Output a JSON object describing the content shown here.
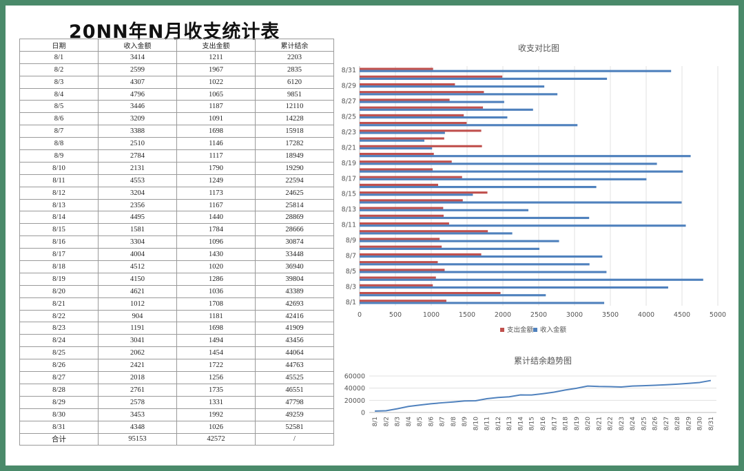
{
  "page_title": "20NN年N月收支统计表",
  "table": {
    "headers": [
      "日期",
      "收入金额",
      "支出金额",
      "累计结余"
    ],
    "rows": [
      [
        "8/1",
        "3414",
        "1211",
        "2203"
      ],
      [
        "8/2",
        "2599",
        "1967",
        "2835"
      ],
      [
        "8/3",
        "4307",
        "1022",
        "6120"
      ],
      [
        "8/4",
        "4796",
        "1065",
        "9851"
      ],
      [
        "8/5",
        "3446",
        "1187",
        "12110"
      ],
      [
        "8/6",
        "3209",
        "1091",
        "14228"
      ],
      [
        "8/7",
        "3388",
        "1698",
        "15918"
      ],
      [
        "8/8",
        "2510",
        "1146",
        "17282"
      ],
      [
        "8/9",
        "2784",
        "1117",
        "18949"
      ],
      [
        "8/10",
        "2131",
        "1790",
        "19290"
      ],
      [
        "8/11",
        "4553",
        "1249",
        "22594"
      ],
      [
        "8/12",
        "3204",
        "1173",
        "24625"
      ],
      [
        "8/13",
        "2356",
        "1167",
        "25814"
      ],
      [
        "8/14",
        "4495",
        "1440",
        "28869"
      ],
      [
        "8/15",
        "1581",
        "1784",
        "28666"
      ],
      [
        "8/16",
        "3304",
        "1096",
        "30874"
      ],
      [
        "8/17",
        "4004",
        "1430",
        "33448"
      ],
      [
        "8/18",
        "4512",
        "1020",
        "36940"
      ],
      [
        "8/19",
        "4150",
        "1286",
        "39804"
      ],
      [
        "8/20",
        "4621",
        "1036",
        "43389"
      ],
      [
        "8/21",
        "1012",
        "1708",
        "42693"
      ],
      [
        "8/22",
        "904",
        "1181",
        "42416"
      ],
      [
        "8/23",
        "1191",
        "1698",
        "41909"
      ],
      [
        "8/24",
        "3041",
        "1494",
        "43456"
      ],
      [
        "8/25",
        "2062",
        "1454",
        "44064"
      ],
      [
        "8/26",
        "2421",
        "1722",
        "44763"
      ],
      [
        "8/27",
        "2018",
        "1256",
        "45525"
      ],
      [
        "8/28",
        "2761",
        "1735",
        "46551"
      ],
      [
        "8/29",
        "2578",
        "1331",
        "47798"
      ],
      [
        "8/30",
        "3453",
        "1992",
        "49259"
      ],
      [
        "8/31",
        "4348",
        "1026",
        "52581"
      ]
    ],
    "total_row": [
      "合计",
      "95153",
      "42572",
      "/"
    ]
  },
  "chart_data": [
    {
      "type": "bar",
      "orientation": "horizontal",
      "title": "收支对比图",
      "categories": [
        "8/1",
        "8/2",
        "8/3",
        "8/4",
        "8/5",
        "8/6",
        "8/7",
        "8/8",
        "8/9",
        "8/10",
        "8/11",
        "8/12",
        "8/13",
        "8/14",
        "8/15",
        "8/16",
        "8/17",
        "8/18",
        "8/19",
        "8/20",
        "8/21",
        "8/22",
        "8/23",
        "8/24",
        "8/25",
        "8/26",
        "8/27",
        "8/28",
        "8/29",
        "8/30",
        "8/31"
      ],
      "category_tick_labels": [
        "8/1",
        "8/3",
        "8/5",
        "8/7",
        "8/9",
        "8/11",
        "8/13",
        "8/15",
        "8/17",
        "8/19",
        "8/21",
        "8/23",
        "8/25",
        "8/27",
        "8/29",
        "8/31"
      ],
      "series": [
        {
          "name": "支出金额",
          "color": "#c0504d",
          "values": [
            1211,
            1967,
            1022,
            1065,
            1187,
            1091,
            1698,
            1146,
            1117,
            1790,
            1249,
            1173,
            1167,
            1440,
            1784,
            1096,
            1430,
            1020,
            1286,
            1036,
            1708,
            1181,
            1698,
            1494,
            1454,
            1722,
            1256,
            1735,
            1331,
            1992,
            1026
          ]
        },
        {
          "name": "收入金额",
          "color": "#4f81bd",
          "values": [
            3414,
            2599,
            4307,
            4796,
            3446,
            3209,
            3388,
            2510,
            2784,
            2131,
            4553,
            3204,
            2356,
            4495,
            1581,
            3304,
            4004,
            4512,
            4150,
            4621,
            1012,
            904,
            1191,
            3041,
            2062,
            2421,
            2018,
            2761,
            2578,
            3453,
            4348
          ]
        }
      ],
      "xlim": [
        0,
        5000
      ],
      "x_ticks": [
        0,
        500,
        1000,
        1500,
        2000,
        2500,
        3000,
        3500,
        4000,
        4500,
        5000
      ],
      "grid": true,
      "legend": "bottom"
    },
    {
      "type": "line",
      "title": "累计结余趋势图",
      "categories": [
        "8/1",
        "8/2",
        "8/3",
        "8/4",
        "8/5",
        "8/6",
        "8/7",
        "8/8",
        "8/9",
        "8/10",
        "8/11",
        "8/12",
        "8/13",
        "8/14",
        "8/15",
        "8/16",
        "8/17",
        "8/18",
        "8/19",
        "8/20",
        "8/21",
        "8/22",
        "8/23",
        "8/24",
        "8/25",
        "8/26",
        "8/27",
        "8/28",
        "8/29",
        "8/30",
        "8/31"
      ],
      "series": [
        {
          "color": "#4f81bd",
          "values": [
            2203,
            2835,
            6120,
            9851,
            12110,
            14228,
            15918,
            17282,
            18949,
            19290,
            22594,
            24625,
            25814,
            28869,
            28666,
            30874,
            33448,
            36940,
            39804,
            43389,
            42693,
            42416,
            41909,
            43456,
            44064,
            44763,
            45525,
            46551,
            47798,
            49259,
            52581
          ]
        }
      ],
      "ylim": [
        0,
        60000
      ],
      "y_ticks": [
        0,
        20000,
        40000,
        60000
      ],
      "grid": true
    }
  ]
}
